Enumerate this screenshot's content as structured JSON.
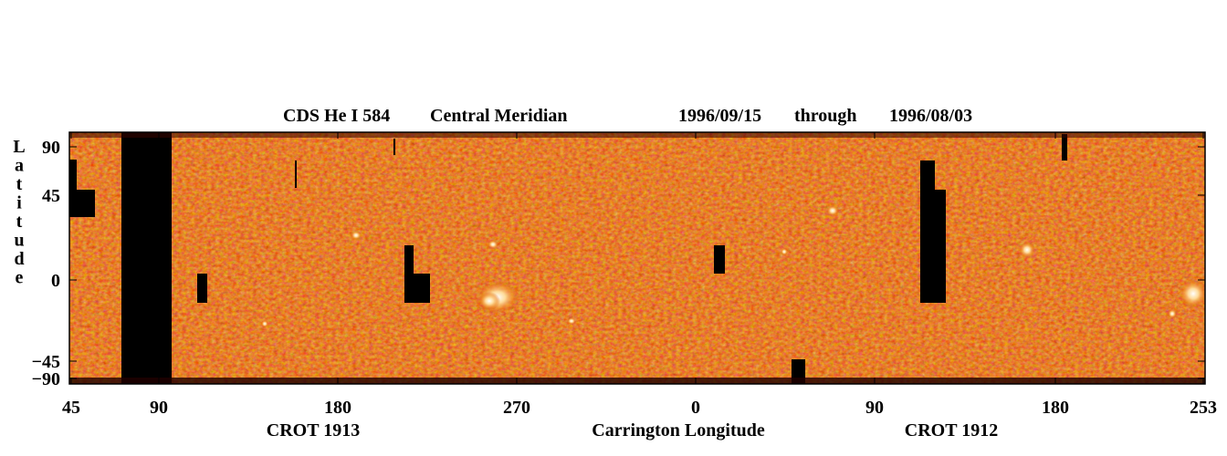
{
  "chart_data": {
    "type": "heatmap",
    "title": {
      "instrument": "CDS He I 584",
      "projection": "Central Meridian",
      "start_date": "1996/09/15",
      "connector": "through",
      "end_date": "1996/08/03"
    },
    "ylabel": "Latitude",
    "xlabel": "Carrington Longitude",
    "y_ticks": [
      {
        "label": "90",
        "value": 90
      },
      {
        "label": "45",
        "value": 45
      },
      {
        "label": "0",
        "value": 0
      },
      {
        "label": "−45",
        "value": -45
      },
      {
        "label": "−90",
        "value": -90
      }
    ],
    "x_ticks": [
      "45",
      "90",
      "180",
      "270",
      "0",
      "90",
      "180",
      "253"
    ],
    "rotations": [
      {
        "label": "CROT 1913"
      },
      {
        "label": "CROT 1912"
      }
    ],
    "colormap": [
      "#1e0000",
      "#7a0a00",
      "#b22600",
      "#d65400",
      "#f08a20",
      "#ffd07a",
      "#ffffff"
    ]
  }
}
